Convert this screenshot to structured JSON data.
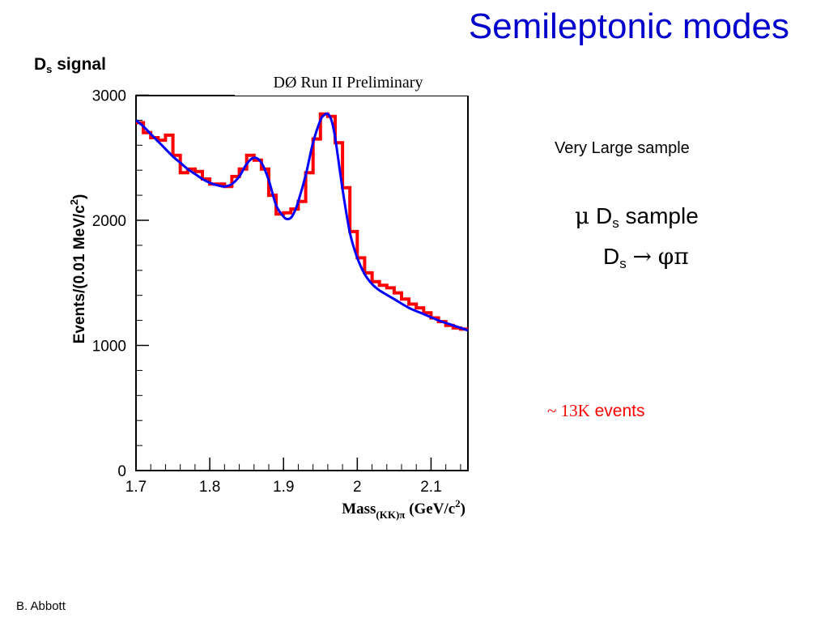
{
  "slide": {
    "title": "Semileptonic modes",
    "panel_title": "D",
    "panel_title_sub": "s",
    "panel_title_rest": " signal",
    "footer": "B. Abbott"
  },
  "notes": {
    "sample_size": "Very Large sample",
    "mu": "μ",
    "d_letter": "D",
    "d_sub": "s",
    "sample_word": "sample",
    "arrow": "→",
    "decay_products": "φπ",
    "events_prefix": "~ 13K",
    "events_suffix": "events"
  },
  "colors": {
    "title": "#0000cc",
    "histogram": "#ff0000",
    "fit": "#0000ff",
    "events_note": "#ff0000"
  },
  "chart_data": {
    "type": "line",
    "header": "DØ Run II Preliminary",
    "ylabel_main": "Events/(0.01 MeV/c",
    "ylabel_exp": "2",
    "ylabel_close": ")",
    "xlabel_main": "Mass",
    "xlabel_sub": "(KK)π",
    "xlabel_unit": " (GeV/c",
    "xlabel_exp": "2",
    "xlabel_close": ")",
    "xlim": [
      1.7,
      2.15
    ],
    "ylim": [
      0,
      3000
    ],
    "x_ticks": [
      1.7,
      1.8,
      1.9,
      2.0,
      2.1
    ],
    "x_tick_labels": [
      "1.7",
      "1.8",
      "1.9",
      "2",
      "2.1"
    ],
    "y_ticks": [
      0,
      1000,
      2000,
      3000
    ],
    "y_tick_labels": [
      "0",
      "1000",
      "2000",
      "3000"
    ],
    "series": [
      {
        "kind": "histogram",
        "bin_edges": [
          1.7,
          1.71,
          1.72,
          1.73,
          1.74,
          1.75,
          1.76,
          1.77,
          1.78,
          1.79,
          1.8,
          1.81,
          1.82,
          1.83,
          1.84,
          1.85,
          1.86,
          1.87,
          1.88,
          1.89,
          1.9,
          1.91,
          1.92,
          1.93,
          1.94,
          1.95,
          1.96,
          1.97,
          1.98,
          1.99,
          2.0,
          2.01,
          2.02,
          2.03,
          2.04,
          2.05,
          2.06,
          2.07,
          2.08,
          2.09,
          2.1,
          2.11,
          2.12,
          2.13,
          2.14,
          2.15
        ],
        "counts": [
          2780,
          2700,
          2660,
          2640,
          2680,
          2520,
          2380,
          2410,
          2390,
          2330,
          2290,
          2290,
          2270,
          2350,
          2410,
          2520,
          2480,
          2410,
          2200,
          2050,
          2060,
          2090,
          2150,
          2380,
          2650,
          2850,
          2830,
          2620,
          2260,
          1910,
          1700,
          1580,
          1510,
          1480,
          1460,
          1420,
          1370,
          1330,
          1300,
          1260,
          1220,
          1190,
          1160,
          1140,
          1130
        ]
      },
      {
        "kind": "fit",
        "x": [
          1.7,
          1.71,
          1.72,
          1.73,
          1.74,
          1.75,
          1.76,
          1.77,
          1.78,
          1.79,
          1.8,
          1.81,
          1.82,
          1.83,
          1.84,
          1.85,
          1.86,
          1.87,
          1.88,
          1.89,
          1.9,
          1.905,
          1.91,
          1.915,
          1.92,
          1.93,
          1.94,
          1.95,
          1.955,
          1.96,
          1.965,
          1.97,
          1.98,
          1.99,
          2.0,
          2.01,
          2.02,
          2.03,
          2.05,
          2.07,
          2.09,
          2.11,
          2.13,
          2.15
        ],
        "y": [
          2800,
          2750,
          2690,
          2630,
          2570,
          2510,
          2460,
          2410,
          2370,
          2330,
          2300,
          2280,
          2270,
          2290,
          2350,
          2450,
          2500,
          2460,
          2320,
          2120,
          2030,
          2010,
          2020,
          2070,
          2150,
          2360,
          2620,
          2800,
          2840,
          2850,
          2800,
          2660,
          2250,
          1900,
          1700,
          1570,
          1490,
          1440,
          1370,
          1300,
          1250,
          1200,
          1160,
          1120
        ]
      }
    ]
  }
}
